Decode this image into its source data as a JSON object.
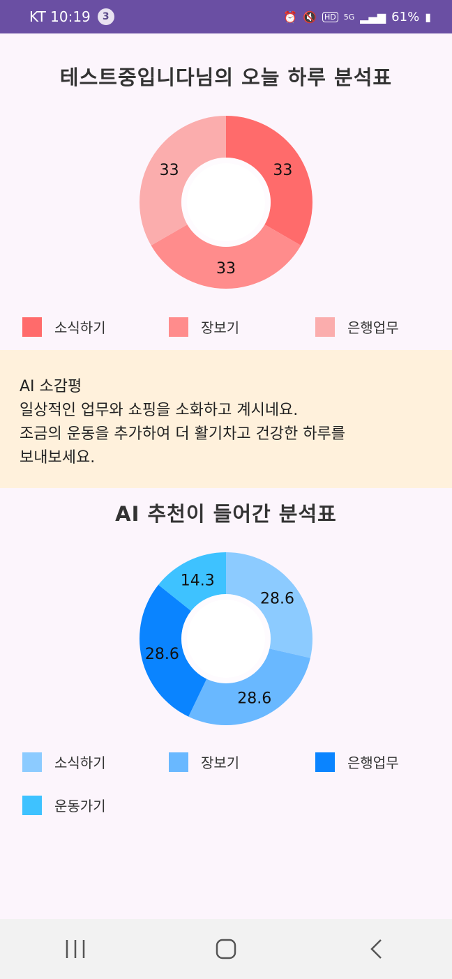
{
  "status_bar": {
    "carrier_time": "KT 10:19",
    "notification_count": "3",
    "battery": "61%",
    "icons": [
      "alarm-icon",
      "mute-icon",
      "hd-icon",
      "5g-icon",
      "signal-icon",
      "battery-icon"
    ]
  },
  "chart1": {
    "title": "테스트중입니다님의 오늘 하루 분석표",
    "chart_data": {
      "type": "pie",
      "categories": [
        "소식하기",
        "장보기",
        "은행업무"
      ],
      "values": [
        33,
        33,
        33
      ],
      "labels": [
        "33",
        "33",
        "33"
      ],
      "colors": [
        "#ff6b6b",
        "#ff8c8c",
        "#fbadad"
      ]
    },
    "legend": [
      {
        "label": "소식하기",
        "color": "#ff6b6b"
      },
      {
        "label": "장보기",
        "color": "#ff8c8c"
      },
      {
        "label": "은행업무",
        "color": "#fbadad"
      }
    ]
  },
  "ai_review": {
    "heading": "AI 소감평",
    "lines": [
      "일상적인 업무와 쇼핑을 소화하고 계시네요.",
      "조금의 운동을 추가하여 더 활기차고 건강한 하루를",
      "보내보세요."
    ]
  },
  "chart2": {
    "title": "AI 추천이 들어간 분석표",
    "chart_data": {
      "type": "pie",
      "categories": [
        "소식하기",
        "장보기",
        "은행업무",
        "운동가기"
      ],
      "values": [
        28.6,
        28.6,
        28.6,
        14.3
      ],
      "labels": [
        "28.6",
        "28.6",
        "28.6",
        "14.3"
      ],
      "colors": [
        "#8ccbff",
        "#69b8ff",
        "#0a84ff",
        "#3ec2ff"
      ]
    },
    "legend": [
      {
        "label": "소식하기",
        "color": "#8ccbff"
      },
      {
        "label": "장보기",
        "color": "#69b8ff"
      },
      {
        "label": "은행업무",
        "color": "#0a84ff"
      },
      {
        "label": "운동가기",
        "color": "#3ec2ff"
      }
    ]
  },
  "nav_bar": {
    "icons": [
      "recent-apps-icon",
      "home-icon",
      "back-icon"
    ]
  }
}
